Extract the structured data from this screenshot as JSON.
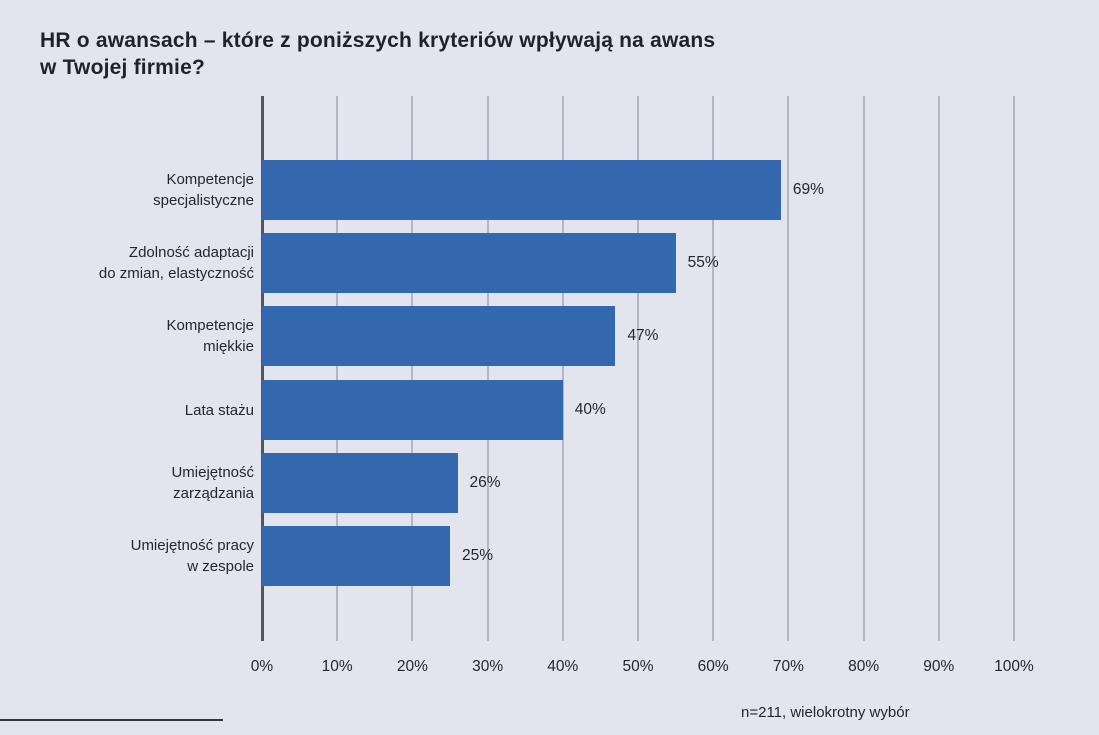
{
  "title": "HR o awansach – które z poniższych kryteriów wpływają na awans\nw Twojej firmie?",
  "footnote": "n=211, wielokrotny wybór",
  "colors": {
    "background": "#E2E5EE",
    "bar": "#3368AE",
    "gridline": "#B2B7C2",
    "axis_line": "#51565E",
    "text": "#23262E",
    "bottom_rule": "#33363C"
  },
  "chart_data": {
    "type": "bar",
    "orientation": "horizontal",
    "title": "HR o awansach – które z poniższych kryteriów wpływają na awans w Twojej firmie?",
    "categories": [
      "Kompetencje\nspecjalistyczne",
      "Zdolność adaptacji\ndo zmian, elastyczność",
      "Kompetencje\nmiękkie",
      "Lata stażu",
      "Umiejętność\nzarządzania",
      "Umiejętność pracy\nw zespole"
    ],
    "values": [
      69,
      55,
      47,
      40,
      26,
      25
    ],
    "value_labels": [
      "69%",
      "55%",
      "47%",
      "40%",
      "26%",
      "25%"
    ],
    "x_tick_labels": [
      "0%",
      "10%",
      "20%",
      "30%",
      "40%",
      "50%",
      "60%",
      "70%",
      "80%",
      "90%",
      "100%"
    ],
    "xlim": [
      0,
      100
    ],
    "grid": true,
    "legend": "none",
    "footnote": "n=211, wielokrotny wybór"
  }
}
